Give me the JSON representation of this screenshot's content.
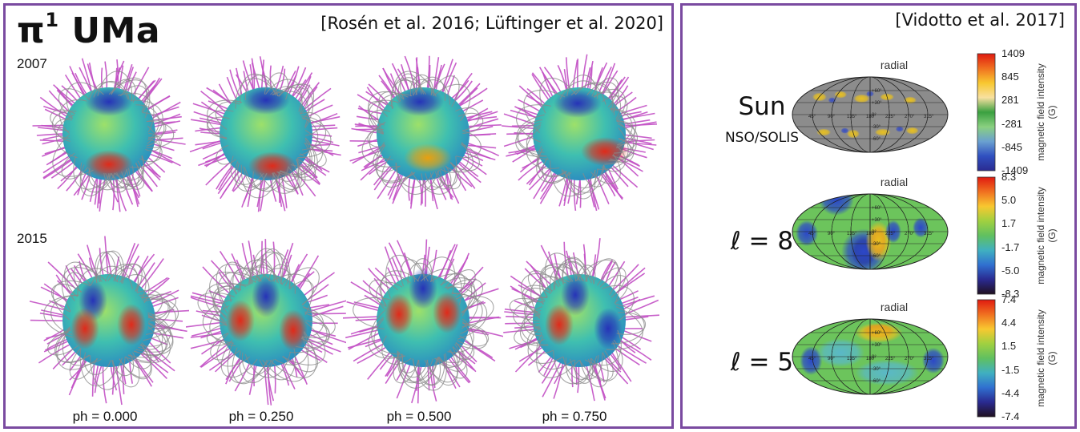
{
  "left": {
    "title_main": "π",
    "title_sup": "1",
    "title_rest": " UMa",
    "citation": "[Rosén et al. 2016; Lüftinger et al. 2020]",
    "rows": [
      {
        "year": "2007"
      },
      {
        "year": "2015"
      }
    ],
    "phases": [
      "ph = 0.000",
      "ph = 0.250",
      "ph = 0.500",
      "ph = 0.750"
    ]
  },
  "right": {
    "citation": "[Vidotto et al. 2017]",
    "maps": [
      {
        "label": "Sun",
        "sublabel": "NSO/SOLIS",
        "map_title": "radial",
        "ticks": [
          "1409",
          "845",
          "281",
          "-281",
          "-845",
          "-1409"
        ],
        "cbar_title": "magnetic field intensity (G)"
      },
      {
        "label": "ℓ = 8",
        "map_title": "radial",
        "ticks": [
          "8.3",
          "5.0",
          "1.7",
          "-1.7",
          "-5.0",
          "-8.3"
        ],
        "cbar_title": "magnetic field intensity (G)"
      },
      {
        "label": "ℓ = 5",
        "map_title": "radial",
        "ticks": [
          "7.4",
          "4.4",
          "1.5",
          "-1.5",
          "-4.4",
          "-7.4"
        ],
        "cbar_title": "magnetic field intensity (G)"
      }
    ],
    "lon_labels": [
      "45°",
      "90°",
      "135°",
      "180°",
      "225°",
      "270°",
      "315°"
    ],
    "lat_labels": [
      "+60°",
      "+30°",
      "0°",
      "-30°",
      "-60°"
    ]
  },
  "colors": {
    "frame": "#7a4aa0",
    "fieldline_open": "#c24fc4",
    "fieldline_closed": "#8a8a8a"
  }
}
